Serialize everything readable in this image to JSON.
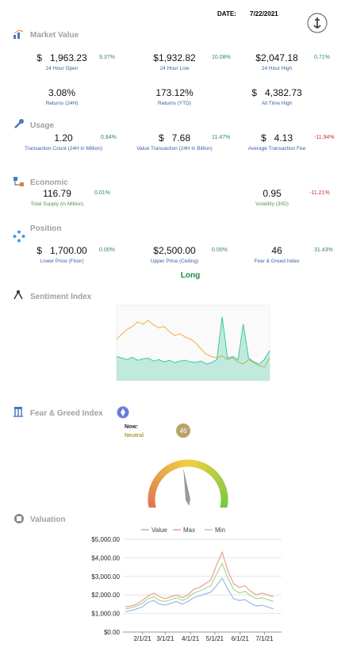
{
  "header": {
    "date_label": "DATE:",
    "date": "7/22/2021"
  },
  "market_value": {
    "title": "Market Value",
    "items": [
      {
        "prefix": "$",
        "value": "1,963.23",
        "change": "9.37%",
        "label": "24 Hour Open"
      },
      {
        "value": "$1,932.82",
        "change": "10.08%",
        "label": "24 Hour Low"
      },
      {
        "value": "$2,047.18",
        "change": "0.71%",
        "label": "24 Hour High"
      },
      {
        "value": "3.08%",
        "label": "Returns (24H)"
      },
      {
        "value": "173.12%",
        "label": "Returns (YTD)"
      },
      {
        "prefix": "$",
        "value": "4,382.73",
        "label": "All Time High"
      }
    ]
  },
  "usage": {
    "title": "Usage",
    "items": [
      {
        "value": "1.20",
        "change": "0.84%",
        "label": "Transaction Count (24H in Million)"
      },
      {
        "prefix": "$",
        "value": "7.68",
        "change": "11.47%",
        "label": "Value Transaction (24H in Billion)"
      },
      {
        "prefix": "$",
        "value": "4.13",
        "change": "-11.94%",
        "label": "Average Transaction Fee"
      }
    ]
  },
  "economic": {
    "title": "Economic",
    "items": [
      {
        "value": "116.79",
        "change": "0.01%",
        "label": "Total Supply (in Million)"
      },
      {
        "value": "0.95",
        "change": "-11.21%",
        "label": "Volatility (30D)"
      }
    ]
  },
  "position": {
    "title": "Position",
    "items": [
      {
        "prefix": "$",
        "value": "1,700.00",
        "change": "0.00%",
        "label": "Lower Price (Floor)"
      },
      {
        "value": "$2,500.00",
        "change": "0.00%",
        "label": "Upper Price (Ceiling)"
      },
      {
        "value": "46",
        "change": "31.43%",
        "label": "Fear & Greed Index"
      }
    ],
    "signal": "Long"
  },
  "sentiment_index": {
    "title": "Sentiment Index",
    "chart_data": {
      "type": "line",
      "ylim": [
        0,
        100
      ],
      "series": [
        {
          "color": "#f0b030",
          "values": [
            55,
            62,
            68,
            72,
            78,
            75,
            80,
            74,
            70,
            72,
            65,
            60,
            62,
            58,
            55,
            50,
            42,
            35,
            32,
            30,
            33,
            28,
            30,
            25,
            22,
            28,
            24,
            20,
            18,
            30
          ]
        },
        {
          "color": "#3cc8a0",
          "area": true,
          "values": [
            32,
            30,
            28,
            31,
            27,
            29,
            30,
            26,
            28,
            25,
            27,
            24,
            26,
            27,
            25,
            24,
            26,
            22,
            24,
            28,
            85,
            30,
            32,
            28,
            75,
            30,
            25,
            22,
            28,
            40
          ]
        }
      ]
    }
  },
  "fear_greed": {
    "title": "Fear & Greed Index",
    "now_label": "Now:",
    "status": "Neutral",
    "chart_data": {
      "type": "gauge",
      "value": 46,
      "range": [
        0,
        100
      ]
    }
  },
  "valuation": {
    "title": "Valuation",
    "chart_data": {
      "type": "line",
      "x": [
        "1/11/21",
        "1/18/21",
        "1/25/21",
        "2/1/21",
        "2/8/21",
        "2/15/21",
        "2/22/21",
        "3/1/21",
        "3/8/21",
        "3/15/21",
        "3/22/21",
        "3/29/21",
        "4/5/21",
        "4/12/21",
        "4/19/21",
        "4/26/21",
        "5/3/21",
        "5/10/21",
        "5/17/21",
        "5/24/21",
        "5/31/21",
        "6/7/21",
        "6/14/21",
        "6/21/21",
        "6/28/21",
        "7/5/21",
        "7/12/21"
      ],
      "xlim": [
        "1/8/21",
        "7/22/21"
      ],
      "xticks": [
        "2/1/21",
        "3/1/21",
        "4/1/21",
        "5/1/21",
        "6/1/21",
        "7/1/21"
      ],
      "ylim": [
        0,
        5000
      ],
      "yticks": [
        {
          "value": 0,
          "label": "$0.00"
        },
        {
          "value": 1000,
          "label": "$1,000.00"
        },
        {
          "value": 2000,
          "label": "$2,000.00"
        },
        {
          "value": 3000,
          "label": "$3,000.00"
        },
        {
          "value": 4000,
          "label": "$4,000.00"
        },
        {
          "value": 5000,
          "label": "$5,000.00"
        }
      ],
      "grid": true,
      "series": [
        {
          "name": "Value",
          "color": "#9ab8e8",
          "values": [
            1100,
            1150,
            1250,
            1350,
            1600,
            1700,
            1500,
            1450,
            1550,
            1650,
            1500,
            1650,
            1850,
            1950,
            2050,
            2150,
            2500,
            2900,
            2300,
            1800,
            1700,
            1750,
            1550,
            1400,
            1450,
            1350,
            1250
          ]
        },
        {
          "name": "Max",
          "color": "#e8a090",
          "values": [
            1350,
            1400,
            1500,
            1700,
            1950,
            2100,
            1900,
            1800,
            1900,
            2000,
            1850,
            2000,
            2300,
            2400,
            2600,
            2800,
            3600,
            4300,
            3300,
            2600,
            2400,
            2500,
            2200,
            2000,
            2100,
            2000,
            1900
          ]
        },
        {
          "name": "Min",
          "color": "#a8d890",
          "values": [
            1250,
            1300,
            1400,
            1550,
            1800,
            1900,
            1700,
            1650,
            1750,
            1850,
            1700,
            1850,
            2100,
            2200,
            2350,
            2500,
            3100,
            3700,
            2900,
            2300,
            2100,
            2200,
            1950,
            1800,
            1850,
            1750,
            1650
          ]
        }
      ]
    }
  }
}
